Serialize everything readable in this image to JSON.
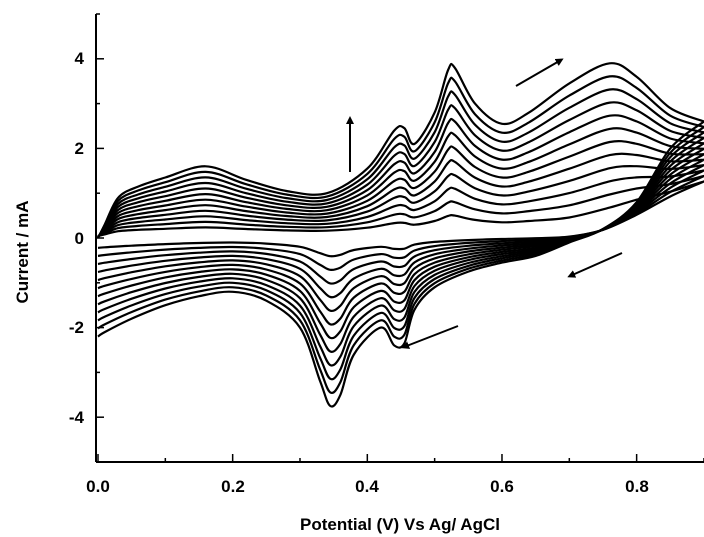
{
  "chart_data": {
    "type": "line",
    "xlabel": "Potential (V) Vs Ag/ AgCl",
    "ylabel": "Current / mA",
    "xlim": [
      0.0,
      0.9
    ],
    "ylim": [
      -5,
      5
    ],
    "x_ticks": [
      "0.0",
      "0.2",
      "0.4",
      "0.6",
      "0.8"
    ],
    "y_ticks": [
      "-4",
      "-2",
      "0",
      "2",
      "4"
    ],
    "grid": false,
    "legend": "none",
    "cycle_count": 12,
    "annotations": [
      "arrow up (peak currents increase with cycle)",
      "arrow anodic sweep direction",
      "arrow cathodic sweep direction",
      "arrow cathodic sweep direction"
    ],
    "outer_cycle_anodic": {
      "x": [
        0.0,
        0.01,
        0.03,
        0.06,
        0.1,
        0.16,
        0.22,
        0.28,
        0.34,
        0.4,
        0.44,
        0.455,
        0.47,
        0.5,
        0.52,
        0.53,
        0.56,
        0.6,
        0.64,
        0.7,
        0.76,
        0.8,
        0.85,
        0.9
      ],
      "y": [
        0.0,
        0.3,
        0.9,
        1.15,
        1.35,
        1.6,
        1.3,
        1.05,
        1.0,
        1.55,
        2.4,
        2.45,
        2.1,
        2.8,
        3.75,
        3.8,
        3.0,
        2.55,
        2.8,
        3.45,
        3.9,
        3.6,
        2.9,
        2.6
      ]
    },
    "outer_cycle_cathodic": {
      "x": [
        0.9,
        0.85,
        0.8,
        0.75,
        0.7,
        0.65,
        0.6,
        0.55,
        0.5,
        0.47,
        0.455,
        0.44,
        0.42,
        0.38,
        0.36,
        0.345,
        0.33,
        0.3,
        0.25,
        0.2,
        0.15,
        0.1,
        0.05,
        0.01,
        0.0
      ],
      "y": [
        2.6,
        2.0,
        0.8,
        0.2,
        -0.1,
        -0.4,
        -0.55,
        -0.75,
        -1.1,
        -1.6,
        -2.35,
        -2.4,
        -2.0,
        -2.6,
        -3.5,
        -3.75,
        -3.2,
        -2.0,
        -1.4,
        -1.2,
        -1.3,
        -1.5,
        -1.8,
        -2.1,
        -2.2
      ]
    }
  }
}
